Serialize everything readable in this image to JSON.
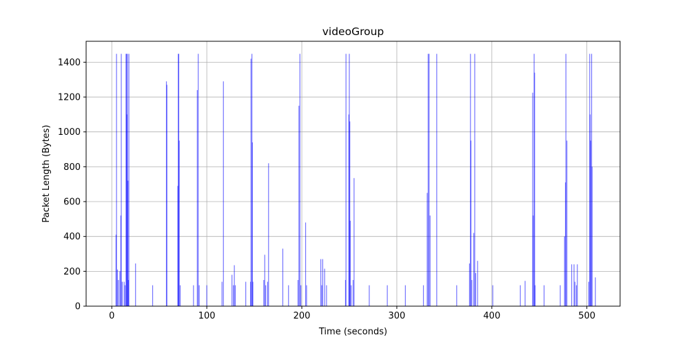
{
  "chart_data": {
    "type": "bar",
    "title": "videoGroup",
    "xlabel": "Time (seconds)",
    "ylabel": "Packet Length (Bytes)",
    "xlim": [
      -27,
      535
    ],
    "ylim": [
      0,
      1520
    ],
    "xticks": [
      0,
      100,
      200,
      300,
      400,
      500
    ],
    "yticks": [
      0,
      200,
      400,
      600,
      800,
      1000,
      1200,
      1400
    ],
    "grid": true,
    "bar_color": "#0000ff",
    "points": [
      {
        "t": 4.5,
        "v": 410
      },
      {
        "t": 5,
        "v": 1448
      },
      {
        "t": 6,
        "v": 210
      },
      {
        "t": 7,
        "v": 150
      },
      {
        "t": 8.5,
        "v": 200
      },
      {
        "t": 9.5,
        "v": 520
      },
      {
        "t": 10,
        "v": 1448
      },
      {
        "t": 11,
        "v": 140
      },
      {
        "t": 13,
        "v": 140
      },
      {
        "t": 14,
        "v": 120
      },
      {
        "t": 15,
        "v": 1448
      },
      {
        "t": 15.5,
        "v": 1448
      },
      {
        "t": 16,
        "v": 1100
      },
      {
        "t": 16.5,
        "v": 1448
      },
      {
        "t": 17,
        "v": 720
      },
      {
        "t": 17.5,
        "v": 150
      },
      {
        "t": 18,
        "v": 1448
      },
      {
        "t": 25,
        "v": 245
      },
      {
        "t": 43,
        "v": 120
      },
      {
        "t": 57.5,
        "v": 1290
      },
      {
        "t": 58,
        "v": 1270
      },
      {
        "t": 69.5,
        "v": 690
      },
      {
        "t": 70,
        "v": 1448
      },
      {
        "t": 70.5,
        "v": 1448
      },
      {
        "t": 71,
        "v": 950
      },
      {
        "t": 72,
        "v": 120
      },
      {
        "t": 86,
        "v": 120
      },
      {
        "t": 90,
        "v": 1240
      },
      {
        "t": 91,
        "v": 1448
      },
      {
        "t": 92,
        "v": 120
      },
      {
        "t": 100,
        "v": 120
      },
      {
        "t": 116,
        "v": 140
      },
      {
        "t": 117.5,
        "v": 1290
      },
      {
        "t": 126.5,
        "v": 180
      },
      {
        "t": 128,
        "v": 120
      },
      {
        "t": 129,
        "v": 235
      },
      {
        "t": 130,
        "v": 120
      },
      {
        "t": 141,
        "v": 140
      },
      {
        "t": 146,
        "v": 140
      },
      {
        "t": 146.5,
        "v": 1420
      },
      {
        "t": 147.5,
        "v": 1448
      },
      {
        "t": 148,
        "v": 940
      },
      {
        "t": 148.5,
        "v": 140
      },
      {
        "t": 160,
        "v": 150
      },
      {
        "t": 161,
        "v": 295
      },
      {
        "t": 162,
        "v": 120
      },
      {
        "t": 164,
        "v": 140
      },
      {
        "t": 165,
        "v": 820
      },
      {
        "t": 180,
        "v": 330
      },
      {
        "t": 186,
        "v": 120
      },
      {
        "t": 196,
        "v": 150
      },
      {
        "t": 197,
        "v": 1150
      },
      {
        "t": 198,
        "v": 1448
      },
      {
        "t": 199,
        "v": 120
      },
      {
        "t": 204,
        "v": 480
      },
      {
        "t": 205,
        "v": 120
      },
      {
        "t": 220,
        "v": 270
      },
      {
        "t": 221,
        "v": 120
      },
      {
        "t": 222,
        "v": 270
      },
      {
        "t": 224,
        "v": 215
      },
      {
        "t": 226,
        "v": 120
      },
      {
        "t": 246,
        "v": 150
      },
      {
        "t": 246.5,
        "v": 1448
      },
      {
        "t": 249.5,
        "v": 1100
      },
      {
        "t": 250,
        "v": 1448
      },
      {
        "t": 250.5,
        "v": 1060
      },
      {
        "t": 251,
        "v": 490
      },
      {
        "t": 252,
        "v": 120
      },
      {
        "t": 254,
        "v": 150
      },
      {
        "t": 255,
        "v": 735
      },
      {
        "t": 271,
        "v": 120
      },
      {
        "t": 290,
        "v": 120
      },
      {
        "t": 309,
        "v": 120
      },
      {
        "t": 328,
        "v": 120
      },
      {
        "t": 332,
        "v": 650
      },
      {
        "t": 333,
        "v": 1448
      },
      {
        "t": 334,
        "v": 1448
      },
      {
        "t": 335,
        "v": 520
      },
      {
        "t": 342,
        "v": 1448
      },
      {
        "t": 363,
        "v": 120
      },
      {
        "t": 376.5,
        "v": 245
      },
      {
        "t": 377.5,
        "v": 1448
      },
      {
        "t": 378,
        "v": 950
      },
      {
        "t": 379,
        "v": 150
      },
      {
        "t": 381,
        "v": 420
      },
      {
        "t": 382,
        "v": 1448
      },
      {
        "t": 383,
        "v": 190
      },
      {
        "t": 385,
        "v": 260
      },
      {
        "t": 401,
        "v": 120
      },
      {
        "t": 430,
        "v": 120
      },
      {
        "t": 435,
        "v": 145
      },
      {
        "t": 443,
        "v": 1225
      },
      {
        "t": 443.5,
        "v": 520
      },
      {
        "t": 444.5,
        "v": 1448
      },
      {
        "t": 445,
        "v": 1340
      },
      {
        "t": 445.5,
        "v": 120
      },
      {
        "t": 455,
        "v": 120
      },
      {
        "t": 472,
        "v": 120
      },
      {
        "t": 476.5,
        "v": 400
      },
      {
        "t": 477.5,
        "v": 710
      },
      {
        "t": 478,
        "v": 1448
      },
      {
        "t": 479,
        "v": 950
      },
      {
        "t": 484,
        "v": 240
      },
      {
        "t": 486.5,
        "v": 240
      },
      {
        "t": 487.5,
        "v": 140
      },
      {
        "t": 489,
        "v": 120
      },
      {
        "t": 490,
        "v": 240
      },
      {
        "t": 502,
        "v": 140
      },
      {
        "t": 503,
        "v": 1448
      },
      {
        "t": 503.5,
        "v": 1100
      },
      {
        "t": 504,
        "v": 950
      },
      {
        "t": 505,
        "v": 1448
      },
      {
        "t": 505.5,
        "v": 800
      },
      {
        "t": 509,
        "v": 165
      }
    ]
  }
}
